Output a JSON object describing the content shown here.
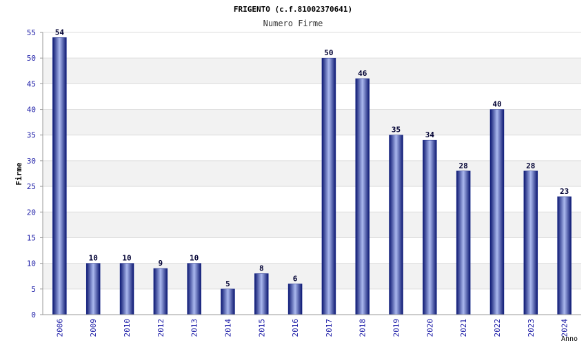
{
  "chart_data": {
    "type": "bar",
    "title": "FRIGENTO (c.f.81002370641)",
    "subtitle": "Numero Firme",
    "xlabel": "Anno",
    "ylabel": "Firme",
    "ylim": [
      0,
      55
    ],
    "yticks": [
      0,
      5,
      10,
      15,
      20,
      25,
      30,
      35,
      40,
      45,
      50,
      55
    ],
    "categories": [
      "2006",
      "2009",
      "2010",
      "2012",
      "2013",
      "2014",
      "2015",
      "2016",
      "2017",
      "2018",
      "2019",
      "2020",
      "2021",
      "2022",
      "2023",
      "2024"
    ],
    "values": [
      54,
      10,
      10,
      9,
      10,
      5,
      8,
      6,
      50,
      46,
      35,
      34,
      28,
      40,
      28,
      23
    ],
    "grid": true,
    "bar_color": "#1a2a8c",
    "band_color": "#f2f2f2"
  }
}
